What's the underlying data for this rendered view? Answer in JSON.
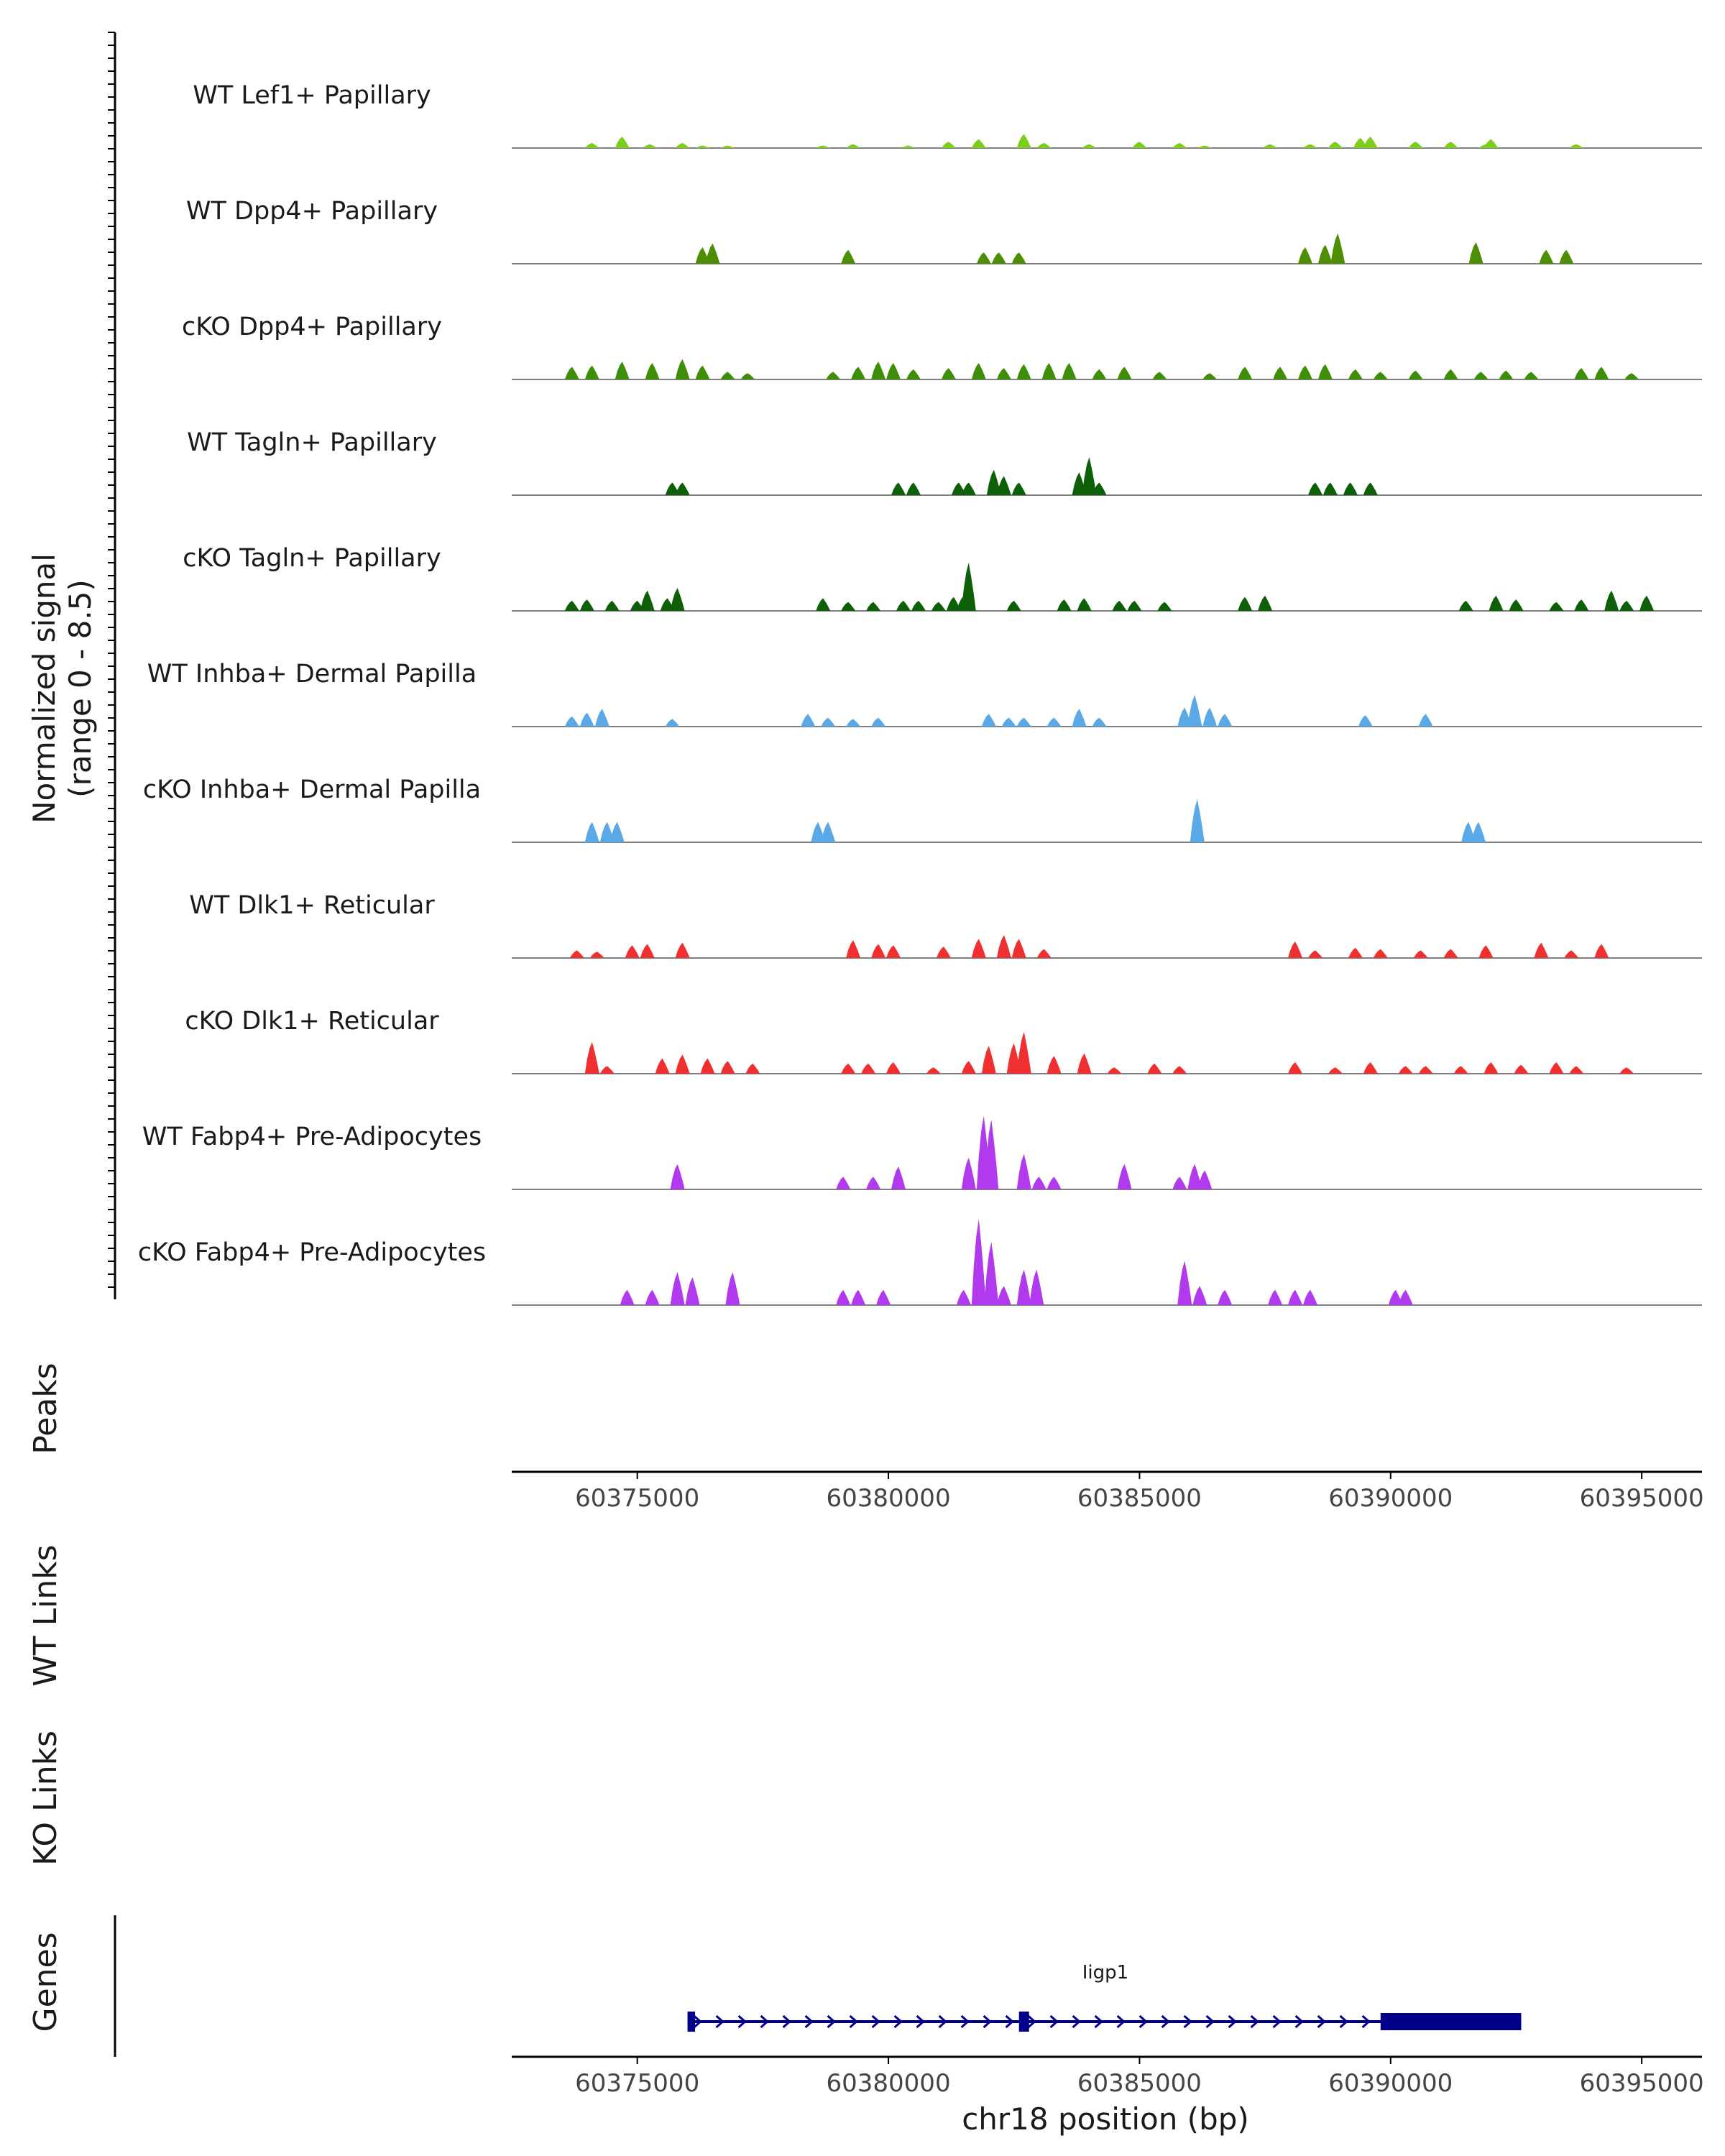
{
  "chart_data": {
    "type": "area",
    "title": "",
    "xlabel": "chr18 position (bp)",
    "coverage_axis": {
      "label_line1": "Normalized signal",
      "label_line2": "(range 0 - 8.5)",
      "ylim": [
        0,
        8.5
      ]
    },
    "xlim": [
      60372500,
      60396200
    ],
    "x_ticks": [
      60375000,
      60380000,
      60385000,
      60390000,
      60395000
    ],
    "x_tick_labels": [
      "60375000",
      "60380000",
      "60385000",
      "60390000",
      "60395000"
    ],
    "series": [
      {
        "name": "WT Lef1+ Papillary",
        "color": "#7CCD1C",
        "peaks": [
          [
            60374100,
            0.4
          ],
          [
            60374700,
            0.9
          ],
          [
            60375250,
            0.3
          ],
          [
            60375900,
            0.4
          ],
          [
            60376300,
            0.2
          ],
          [
            60376800,
            0.2
          ],
          [
            60378700,
            0.2
          ],
          [
            60379300,
            0.3
          ],
          [
            60380400,
            0.2
          ],
          [
            60381200,
            0.5
          ],
          [
            60381800,
            0.7
          ],
          [
            60382700,
            1.1
          ],
          [
            60383100,
            0.4
          ],
          [
            60384000,
            0.3
          ],
          [
            60385000,
            0.5
          ],
          [
            60385800,
            0.4
          ],
          [
            60386300,
            0.2
          ],
          [
            60387600,
            0.3
          ],
          [
            60388400,
            0.3
          ],
          [
            60388900,
            0.5
          ],
          [
            60389400,
            0.8
          ],
          [
            60389600,
            0.9
          ],
          [
            60390500,
            0.5
          ],
          [
            60391200,
            0.5
          ],
          [
            60391900,
            0.3
          ],
          [
            60392000,
            0.7
          ],
          [
            60393700,
            0.3
          ]
        ]
      },
      {
        "name": "WT Dpp4+ Papillary",
        "color": "#4E8E04",
        "peaks": [
          [
            60376300,
            1.3
          ],
          [
            60376500,
            1.6
          ],
          [
            60379200,
            1.1
          ],
          [
            60381900,
            0.9
          ],
          [
            60382200,
            0.9
          ],
          [
            60382600,
            0.9
          ],
          [
            60388300,
            1.3
          ],
          [
            60388700,
            1.5
          ],
          [
            60388950,
            2.4
          ],
          [
            60391700,
            1.7
          ],
          [
            60393100,
            1.1
          ],
          [
            60393500,
            1.1
          ]
        ]
      },
      {
        "name": "cKO Dpp4+ Papillary",
        "color": "#3F8E0A",
        "peaks": [
          [
            60373700,
            1.0
          ],
          [
            60374100,
            1.1
          ],
          [
            60374700,
            1.4
          ],
          [
            60375300,
            1.3
          ],
          [
            60375900,
            1.6
          ],
          [
            60376300,
            1.1
          ],
          [
            60376800,
            0.6
          ],
          [
            60377200,
            0.5
          ],
          [
            60378900,
            0.6
          ],
          [
            60379400,
            1.0
          ],
          [
            60379800,
            1.4
          ],
          [
            60380100,
            1.3
          ],
          [
            60380500,
            0.8
          ],
          [
            60381200,
            0.9
          ],
          [
            60381800,
            1.3
          ],
          [
            60382300,
            0.9
          ],
          [
            60382700,
            1.2
          ],
          [
            60383200,
            1.3
          ],
          [
            60383600,
            1.3
          ],
          [
            60384200,
            0.8
          ],
          [
            60384700,
            1.0
          ],
          [
            60385400,
            0.6
          ],
          [
            60386400,
            0.5
          ],
          [
            60387100,
            1.0
          ],
          [
            60387800,
            1.0
          ],
          [
            60388300,
            1.1
          ],
          [
            60388700,
            1.2
          ],
          [
            60389300,
            0.8
          ],
          [
            60389800,
            0.6
          ],
          [
            60390500,
            0.7
          ],
          [
            60391200,
            0.8
          ],
          [
            60391800,
            0.6
          ],
          [
            60392300,
            0.7
          ],
          [
            60392800,
            0.6
          ],
          [
            60393800,
            0.9
          ],
          [
            60394200,
            1.0
          ],
          [
            60394800,
            0.5
          ]
        ]
      },
      {
        "name": "WT Tagln+ Papillary",
        "color": "#0D5F08",
        "peaks": [
          [
            60375700,
            1.0
          ],
          [
            60375900,
            1.0
          ],
          [
            60380200,
            1.0
          ],
          [
            60380500,
            1.0
          ],
          [
            60381400,
            1.0
          ],
          [
            60381600,
            1.0
          ],
          [
            60382100,
            2.0
          ],
          [
            60382300,
            1.5
          ],
          [
            60382600,
            1.0
          ],
          [
            60383800,
            1.8
          ],
          [
            60384000,
            3.0
          ],
          [
            60384200,
            1.0
          ],
          [
            60388500,
            1.0
          ],
          [
            60388800,
            1.0
          ],
          [
            60389200,
            1.0
          ],
          [
            60389600,
            1.0
          ]
        ]
      },
      {
        "name": "cKO Tagln+ Papillary",
        "color": "#0D5F08",
        "peaks": [
          [
            60373700,
            0.8
          ],
          [
            60374000,
            0.9
          ],
          [
            60374500,
            0.8
          ],
          [
            60375000,
            0.8
          ],
          [
            60375200,
            1.6
          ],
          [
            60375600,
            1.0
          ],
          [
            60375800,
            1.8
          ],
          [
            60378700,
            1.0
          ],
          [
            60379200,
            0.7
          ],
          [
            60379700,
            0.7
          ],
          [
            60380300,
            0.8
          ],
          [
            60380600,
            0.8
          ],
          [
            60381000,
            0.7
          ],
          [
            60381300,
            1.1
          ],
          [
            60381500,
            1.2
          ],
          [
            60381600,
            3.8
          ],
          [
            60382500,
            0.8
          ],
          [
            60383500,
            0.9
          ],
          [
            60383900,
            1.0
          ],
          [
            60384600,
            0.8
          ],
          [
            60384900,
            0.8
          ],
          [
            60385500,
            0.7
          ],
          [
            60387100,
            1.1
          ],
          [
            60387500,
            1.2
          ],
          [
            60391500,
            0.8
          ],
          [
            60392100,
            1.2
          ],
          [
            60392500,
            0.9
          ],
          [
            60393300,
            0.7
          ],
          [
            60393800,
            0.9
          ],
          [
            60394400,
            1.6
          ],
          [
            60394700,
            0.8
          ],
          [
            60395100,
            1.2
          ]
        ]
      },
      {
        "name": "WT Inhba+ Dermal Papilla",
        "color": "#5AA9E6",
        "peaks": [
          [
            60373700,
            0.8
          ],
          [
            60374000,
            1.1
          ],
          [
            60374300,
            1.4
          ],
          [
            60375700,
            0.6
          ],
          [
            60378400,
            1.0
          ],
          [
            60378800,
            0.7
          ],
          [
            60379300,
            0.6
          ],
          [
            60379800,
            0.7
          ],
          [
            60382000,
            1.0
          ],
          [
            60382400,
            0.7
          ],
          [
            60382700,
            0.7
          ],
          [
            60383300,
            0.7
          ],
          [
            60383800,
            1.4
          ],
          [
            60384200,
            0.7
          ],
          [
            60385900,
            1.5
          ],
          [
            60386100,
            2.5
          ],
          [
            60386400,
            1.5
          ],
          [
            60386700,
            1.0
          ],
          [
            60389500,
            0.9
          ],
          [
            60390700,
            1.0
          ]
        ]
      },
      {
        "name": "cKO Inhba+ Dermal Papilla",
        "color": "#5AA9E6",
        "peaks": [
          [
            60374100,
            1.6
          ],
          [
            60374400,
            1.6
          ],
          [
            60374600,
            1.6
          ],
          [
            60378600,
            1.6
          ],
          [
            60378800,
            1.6
          ],
          [
            60386150,
            3.4
          ],
          [
            60391550,
            1.6
          ],
          [
            60391750,
            1.6
          ]
        ]
      },
      {
        "name": "WT Dlk1+ Reticular",
        "color": "#F03030",
        "peaks": [
          [
            60373800,
            0.6
          ],
          [
            60374200,
            0.5
          ],
          [
            60374900,
            1.0
          ],
          [
            60375200,
            1.1
          ],
          [
            60375900,
            1.2
          ],
          [
            60379300,
            1.4
          ],
          [
            60379800,
            1.1
          ],
          [
            60380100,
            1.0
          ],
          [
            60381100,
            0.9
          ],
          [
            60381800,
            1.5
          ],
          [
            60382300,
            1.8
          ],
          [
            60382600,
            1.5
          ],
          [
            60383100,
            0.7
          ],
          [
            60388100,
            1.3
          ],
          [
            60388500,
            0.6
          ],
          [
            60389300,
            0.8
          ],
          [
            60389800,
            0.7
          ],
          [
            60390600,
            0.6
          ],
          [
            60391200,
            0.7
          ],
          [
            60391900,
            1.0
          ],
          [
            60393000,
            1.2
          ],
          [
            60393600,
            0.6
          ],
          [
            60394200,
            1.1
          ]
        ]
      },
      {
        "name": "cKO Dlk1+ Reticular",
        "color": "#F03030",
        "peaks": [
          [
            60374100,
            2.5
          ],
          [
            60374400,
            0.6
          ],
          [
            60375500,
            1.2
          ],
          [
            60375900,
            1.5
          ],
          [
            60376400,
            1.2
          ],
          [
            60376800,
            1.0
          ],
          [
            60377300,
            0.8
          ],
          [
            60379200,
            0.8
          ],
          [
            60379600,
            0.8
          ],
          [
            60380100,
            0.9
          ],
          [
            60380900,
            0.5
          ],
          [
            60381600,
            1.0
          ],
          [
            60382000,
            2.2
          ],
          [
            60382500,
            2.4
          ],
          [
            60382700,
            3.3
          ],
          [
            60383300,
            1.4
          ],
          [
            60383900,
            1.6
          ],
          [
            60384500,
            0.5
          ],
          [
            60385300,
            0.8
          ],
          [
            60385800,
            0.6
          ],
          [
            60388100,
            0.9
          ],
          [
            60388900,
            0.5
          ],
          [
            60389600,
            0.9
          ],
          [
            60390300,
            0.6
          ],
          [
            60390700,
            0.6
          ],
          [
            60391400,
            0.6
          ],
          [
            60392000,
            0.9
          ],
          [
            60392600,
            0.7
          ],
          [
            60393300,
            0.9
          ],
          [
            60393700,
            0.6
          ],
          [
            60394700,
            0.5
          ]
        ]
      },
      {
        "name": "WT Fabp4+ Pre-Adipocytes",
        "color": "#B23AEE",
        "peaks": [
          [
            60375800,
            2.0
          ],
          [
            60379100,
            1.0
          ],
          [
            60379700,
            1.0
          ],
          [
            60380200,
            1.8
          ],
          [
            60381600,
            2.5
          ],
          [
            60381900,
            5.8
          ],
          [
            60382050,
            5.5
          ],
          [
            60382700,
            2.8
          ],
          [
            60383000,
            1.0
          ],
          [
            60383300,
            1.0
          ],
          [
            60384700,
            2.0
          ],
          [
            60385800,
            1.0
          ],
          [
            60386100,
            2.0
          ],
          [
            60386300,
            1.5
          ]
        ]
      },
      {
        "name": "cKO Fabp4+ Pre-Adipocytes",
        "color": "#B23AEE",
        "peaks": [
          [
            60374800,
            1.2
          ],
          [
            60375300,
            1.2
          ],
          [
            60375800,
            2.6
          ],
          [
            60376100,
            2.2
          ],
          [
            60376900,
            2.6
          ],
          [
            60379100,
            1.2
          ],
          [
            60379400,
            1.2
          ],
          [
            60379900,
            1.2
          ],
          [
            60381500,
            1.2
          ],
          [
            60381800,
            6.8
          ],
          [
            60382050,
            5.0
          ],
          [
            60382300,
            1.5
          ],
          [
            60382700,
            2.8
          ],
          [
            60382950,
            2.8
          ],
          [
            60385900,
            3.5
          ],
          [
            60386200,
            1.5
          ],
          [
            60386700,
            1.2
          ],
          [
            60387700,
            1.2
          ],
          [
            60388100,
            1.2
          ],
          [
            60388400,
            1.2
          ],
          [
            60390100,
            1.2
          ],
          [
            60390300,
            1.2
          ]
        ]
      }
    ],
    "panels": {
      "peaks_label": "Peaks",
      "wt_links_label": "WT Links",
      "ko_links_label": "KO Links",
      "genes_label": "Genes"
    },
    "gene": {
      "name": "Iigp1",
      "color": "#00008B",
      "strand": "+",
      "start": 60376000,
      "end": 60392600,
      "exons": [
        [
          60376000,
          60376150
        ],
        [
          60382600,
          60382800
        ],
        [
          60389800,
          60392600
        ]
      ]
    }
  }
}
